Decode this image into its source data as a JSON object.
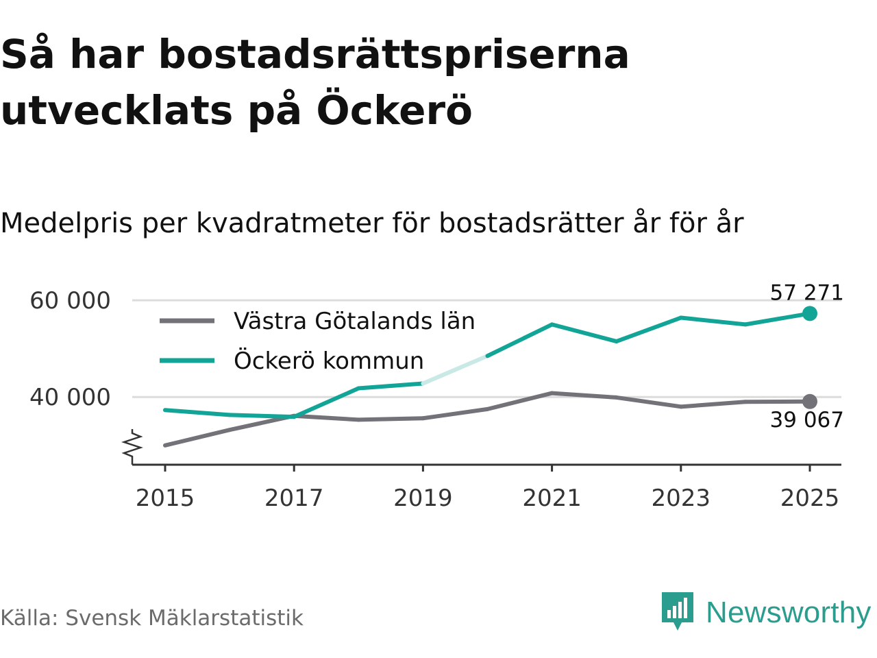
{
  "title": "Så har bostadsrättspriserna utvecklats på Öckerö",
  "subtitle": "Medelpris per kvadratmeter för bostadsrätter år för år",
  "source": "Källa: Svensk Mäklarstatistik",
  "brand": {
    "name": "Newsworthy",
    "icon": "newsworthy-logo-icon"
  },
  "colors": {
    "teal": "#12a597",
    "teal_faded": "#c8e9e5",
    "gray": "#737279",
    "grid": "#dcdcdc",
    "axis": "#333333"
  },
  "chart_data": {
    "type": "line",
    "x": [
      2015,
      2016,
      2017,
      2018,
      2019,
      2020,
      2021,
      2022,
      2023,
      2024,
      2025
    ],
    "ylim": [
      26000,
      62000
    ],
    "y_ticks": [
      40000,
      60000
    ],
    "y_tick_labels": [
      "40 000",
      "60 000"
    ],
    "x_ticks": [
      2015,
      2017,
      2019,
      2021,
      2023,
      2025
    ],
    "x_tick_labels": [
      "2015",
      "2017",
      "2019",
      "2021",
      "2023",
      "2025"
    ],
    "axis_break": true,
    "grid": true,
    "legend_position": "top-left",
    "faded_segment": [
      2019,
      2020
    ],
    "series": [
      {
        "name": "Västra Götalands län",
        "color": "#737279",
        "values": [
          30000,
          33200,
          36100,
          35300,
          35600,
          37500,
          40800,
          39900,
          38000,
          39000,
          39067
        ],
        "end_label": "39 067"
      },
      {
        "name": "Öckerö kommun",
        "color": "#12a597",
        "values": [
          37300,
          36300,
          35900,
          41800,
          42800,
          48500,
          55000,
          51500,
          56400,
          55000,
          57271
        ],
        "end_label": "57 271"
      }
    ]
  }
}
